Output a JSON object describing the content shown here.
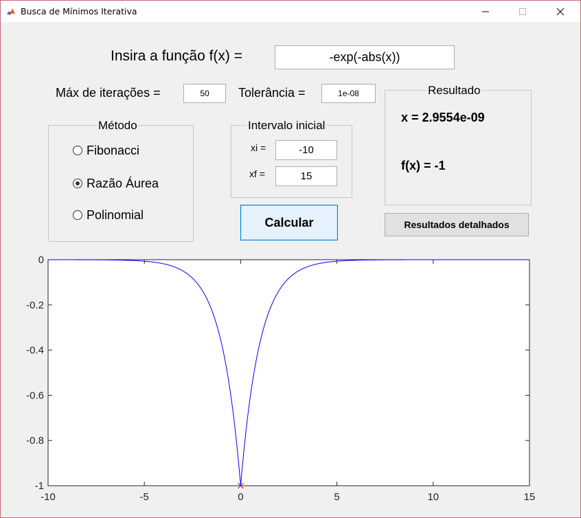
{
  "window": {
    "title": "Busca de Mínimos Iterativa",
    "controls": [
      "minimize",
      "maximize",
      "close"
    ]
  },
  "function_input": {
    "label": "Insira a função f(x) =",
    "value": "-exp(-abs(x))"
  },
  "max_iter": {
    "label": "Máx de iterações =",
    "value": "50"
  },
  "tolerance": {
    "label": "Tolerância =",
    "value": "1e-08"
  },
  "method_group": {
    "title": "Método",
    "options": [
      {
        "label": "Fibonacci",
        "selected": false
      },
      {
        "label": "Razão Áurea",
        "selected": true
      },
      {
        "label": "Polinomial",
        "selected": false
      }
    ]
  },
  "interval_group": {
    "title": "Intervalo inicial",
    "xi_label": "xi =",
    "xi_value": "-10",
    "xf_label": "xf =",
    "xf_value": "15"
  },
  "calculate_button": {
    "label": "Calcular"
  },
  "result_group": {
    "title": "Resultado",
    "x_text": "x = 2.9554e-09",
    "fx_text": "f(x) = -1"
  },
  "details_button": {
    "label": "Resultados detalhados"
  },
  "colors": {
    "curve": "#0000ff",
    "marker": "#ff0000",
    "accent": "#0078d7",
    "window_border": "#c46a72"
  },
  "chart_data": {
    "type": "line",
    "function": "-exp(-abs(x))",
    "xlim": [
      -10,
      15
    ],
    "ylim": [
      -1,
      0
    ],
    "x_ticks": [
      -10,
      -5,
      0,
      5,
      10,
      15
    ],
    "y_ticks": [
      0,
      -0.2,
      -0.4,
      -0.6,
      -0.8,
      -1
    ],
    "x_tick_labels": [
      "-10",
      "-5",
      "0",
      "5",
      "10",
      "15"
    ],
    "y_tick_labels": [
      "0",
      "-0.2",
      "-0.4",
      "-0.6",
      "-0.8",
      "-1"
    ],
    "grid": false,
    "minimum_marker": {
      "x": 0,
      "y": -1,
      "symbol": "x"
    },
    "series": [
      {
        "x": [
          -10,
          -8,
          -6,
          -5,
          -4,
          -3,
          -2.5,
          -2,
          -1.5,
          -1,
          -0.75,
          -0.5,
          -0.25,
          -0.1,
          0,
          0.1,
          0.25,
          0.5,
          0.75,
          1,
          1.5,
          2,
          2.5,
          3,
          4,
          5,
          6,
          8,
          10,
          12,
          15
        ],
        "y": [
          -4.54e-05,
          -0.000335,
          -0.00248,
          -0.00674,
          -0.0183,
          -0.0498,
          -0.0821,
          -0.135,
          -0.223,
          -0.368,
          -0.472,
          -0.607,
          -0.779,
          -0.905,
          -1,
          -0.905,
          -0.779,
          -0.607,
          -0.472,
          -0.368,
          -0.223,
          -0.135,
          -0.0821,
          -0.0498,
          -0.0183,
          -0.00674,
          -0.00248,
          -0.000335,
          -4.54e-05,
          -6.14e-06,
          -3.06e-07
        ]
      }
    ]
  }
}
